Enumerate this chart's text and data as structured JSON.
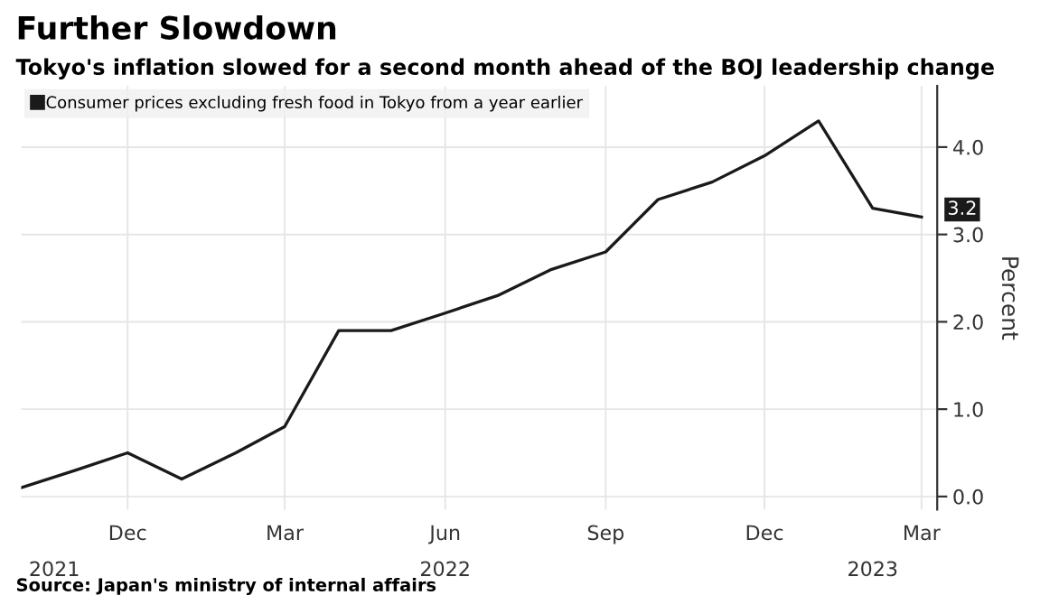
{
  "chart_data": {
    "type": "line",
    "title": "Further Slowdown",
    "subtitle": "Tokyo's inflation slowed for a second month ahead of the BOJ leadership change",
    "ylabel": "Percent",
    "annotations": [
      "Source: Japan's ministry of internal affairs"
    ],
    "x": [
      "2021-10",
      "2021-11",
      "2021-12",
      "2022-01",
      "2022-02",
      "2022-03",
      "2022-04",
      "2022-05",
      "2022-06",
      "2022-07",
      "2022-08",
      "2022-09",
      "2022-10",
      "2022-11",
      "2022-12",
      "2023-01",
      "2023-02",
      "2023-03"
    ],
    "series": [
      {
        "name": "Consumer prices excluding fresh food in Tokyo from a year earlier",
        "color": "#1a1a1a",
        "values": [
          0.1,
          0.3,
          0.5,
          0.2,
          0.5,
          0.8,
          1.9,
          1.9,
          2.1,
          2.3,
          2.6,
          2.8,
          3.4,
          3.6,
          3.9,
          4.3,
          3.3,
          3.2
        ],
        "value_labels": [
          null,
          null,
          null,
          null,
          null,
          null,
          null,
          null,
          null,
          null,
          null,
          null,
          null,
          null,
          null,
          null,
          null,
          "3.2"
        ]
      }
    ],
    "xlim": [
      "2021-10-01",
      "2023-03-10"
    ],
    "xticks": [
      {
        "value": "2021-12",
        "label": "Dec"
      },
      {
        "value": "2022-03",
        "label": "Mar"
      },
      {
        "value": "2022-06",
        "label": "Jun"
      },
      {
        "value": "2022-09",
        "label": "Sep"
      },
      {
        "value": "2022-12",
        "label": "Dec"
      },
      {
        "value": "2023-03",
        "label": "Mar"
      }
    ],
    "x2lim": [
      "2021-10-01",
      "2023-03-10"
    ],
    "x2ticks": [
      {
        "value": "2021-10-20",
        "label": "2021"
      },
      {
        "value": "2022-06",
        "label": "2022"
      },
      {
        "value": "2023-02",
        "label": "2023"
      }
    ],
    "ylim": [
      -0.15,
      4.7
    ],
    "yticks": [
      {
        "value": 0,
        "label": "0.0"
      },
      {
        "value": 1,
        "label": "1.0"
      },
      {
        "value": 2,
        "label": "2.0"
      },
      {
        "value": 3,
        "label": "3.0"
      },
      {
        "value": 4,
        "label": "4.0"
      }
    ],
    "grid": true,
    "legend": "top left",
    "marker": "none",
    "line_style": "solid"
  }
}
